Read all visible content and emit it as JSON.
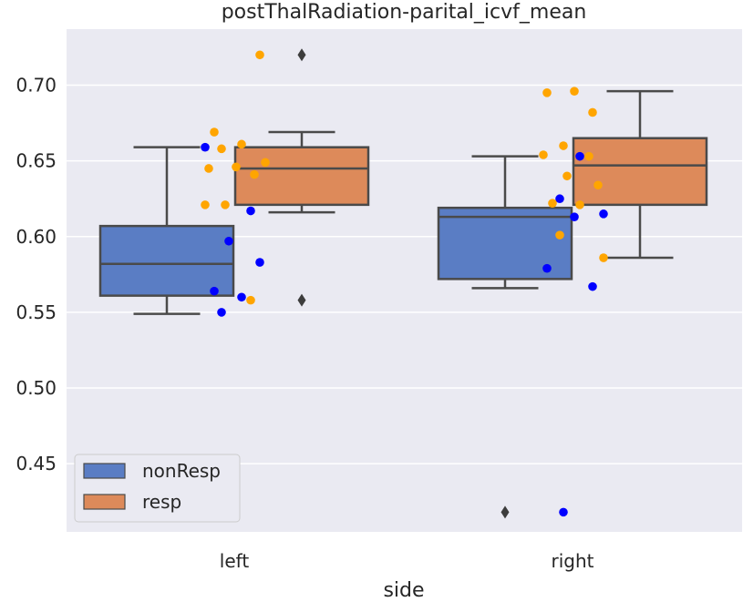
{
  "chart_data": {
    "type": "box",
    "title": "postThalRadiation-parital_icvf_mean",
    "xlabel": "side",
    "ylabel": "",
    "categories": [
      "left",
      "right"
    ],
    "ylim": [
      0.405,
      0.737
    ],
    "yticks": [
      0.45,
      0.5,
      0.55,
      0.6,
      0.65,
      0.7
    ],
    "ytick_labels": [
      "0.45",
      "0.50",
      "0.55",
      "0.60",
      "0.65",
      "0.70"
    ],
    "grid": true,
    "legend_position": "lower-left",
    "series": [
      {
        "name": "nonResp",
        "color": "#5a7dc4",
        "point_color": "#0000ff",
        "boxes": [
          {
            "category": "left",
            "whisker_low": 0.549,
            "q1": 0.561,
            "median": 0.582,
            "q3": 0.607,
            "whisker_high": 0.659,
            "outliers": []
          },
          {
            "category": "right",
            "whisker_low": 0.566,
            "q1": 0.572,
            "median": 0.613,
            "q3": 0.619,
            "whisker_high": 0.653,
            "outliers": [
              0.418
            ]
          }
        ],
        "points": [
          {
            "category": "left",
            "values": [
              0.659,
              0.617,
              0.597,
              0.583,
              0.564,
              0.56,
              0.55
            ]
          },
          {
            "category": "right",
            "values": [
              0.653,
              0.625,
              0.615,
              0.613,
              0.579,
              0.567,
              0.418
            ]
          }
        ]
      },
      {
        "name": "resp",
        "color": "#dd8a5a",
        "point_color": "#ffa500",
        "boxes": [
          {
            "category": "left",
            "whisker_low": 0.616,
            "q1": 0.621,
            "median": 0.645,
            "q3": 0.659,
            "whisker_high": 0.669,
            "outliers": [
              0.72,
              0.558
            ]
          },
          {
            "category": "right",
            "whisker_low": 0.586,
            "q1": 0.621,
            "median": 0.647,
            "q3": 0.665,
            "whisker_high": 0.696,
            "outliers": []
          }
        ],
        "points": [
          {
            "category": "left",
            "values": [
              0.72,
              0.669,
              0.661,
              0.658,
              0.649,
              0.646,
              0.645,
              0.641,
              0.621,
              0.621,
              0.558
            ]
          },
          {
            "category": "right",
            "values": [
              0.696,
              0.695,
              0.682,
              0.66,
              0.654,
              0.653,
              0.64,
              0.634,
              0.622,
              0.621,
              0.601,
              0.586
            ]
          }
        ]
      }
    ]
  }
}
